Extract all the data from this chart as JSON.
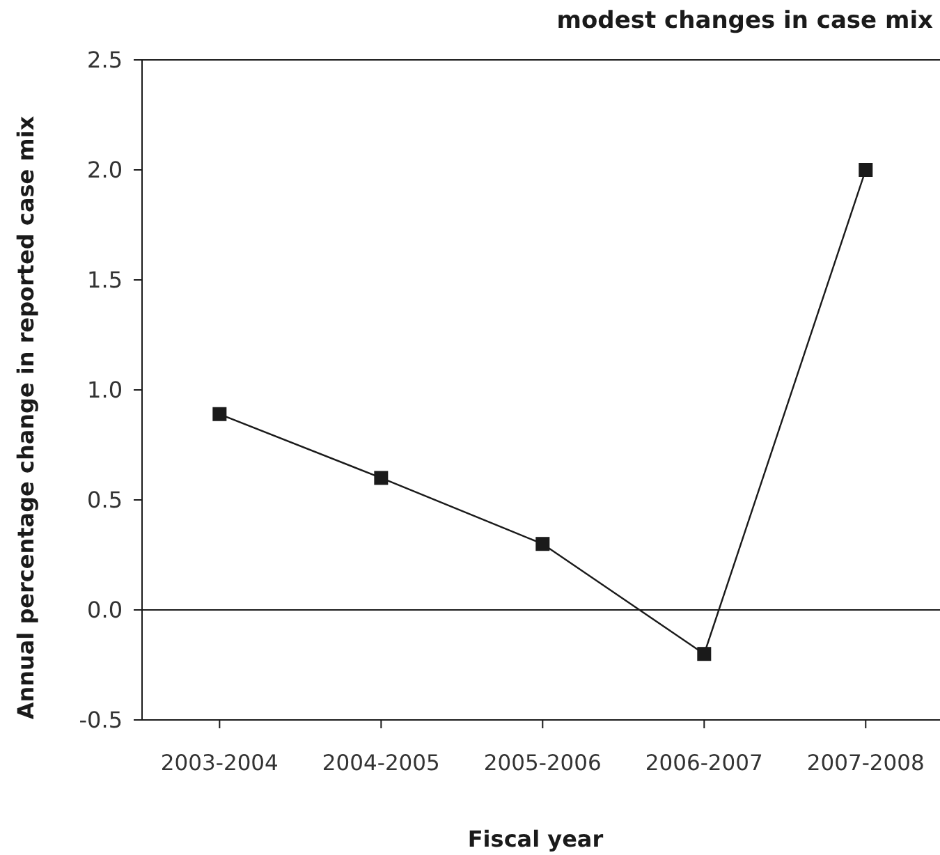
{
  "chart_data": {
    "type": "line",
    "title": "modest changes in case mix",
    "xlabel": "Fiscal year",
    "ylabel": "Annual percentage change in reported case mix",
    "categories": [
      "2003-2004",
      "2004-2005",
      "2005-2006",
      "2006-2007",
      "2007-2008"
    ],
    "series": [
      {
        "color": "#1a1a1a",
        "values": [
          0.89,
          0.6,
          0.3,
          -0.2,
          2.0
        ]
      }
    ],
    "ylim": [
      -0.5,
      2.5
    ],
    "yticks": [
      {
        "value": -0.5,
        "label": "-0.5"
      },
      {
        "value": 0,
        "label": "0.0"
      },
      0.5,
      {
        "value": 1,
        "label": "1.0"
      },
      1.5,
      {
        "value": 2,
        "label": "2.0"
      },
      2.5
    ],
    "ref_lines": [
      {
        "axis": "y",
        "value": 0,
        "color": "#1a1a1a"
      }
    ],
    "marker": "square",
    "line_style": "solid"
  }
}
